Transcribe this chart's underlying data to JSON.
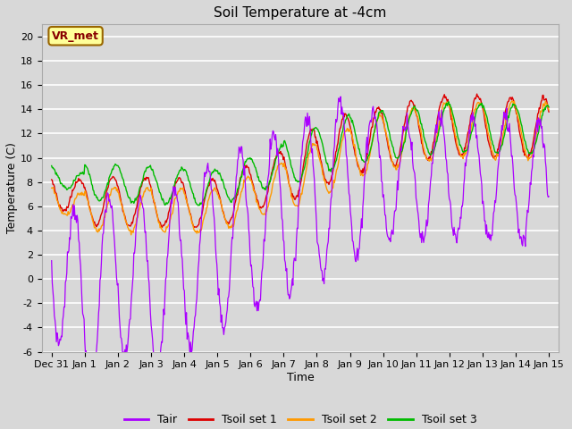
{
  "title": "Soil Temperature at -4cm",
  "xlabel": "Time",
  "ylabel": "Temperature (C)",
  "ylim": [
    -6,
    21
  ],
  "yticks": [
    -6,
    -4,
    -2,
    0,
    2,
    4,
    6,
    8,
    10,
    12,
    14,
    16,
    18,
    20
  ],
  "xtick_labels": [
    "Dec 31",
    "Jan 1",
    "Jan 2",
    "Jan 3",
    "Jan 4",
    "Jan 5",
    "Jan 6",
    "Jan 7",
    "Jan 8",
    "Jan 9",
    "Jan 10",
    "Jan 11",
    "Jan 12",
    "Jan 13",
    "Jan 14",
    "Jan 15"
  ],
  "legend_labels": [
    "Tair",
    "Tsoil set 1",
    "Tsoil set 2",
    "Tsoil set 3"
  ],
  "line_colors": [
    "#aa00ff",
    "#dd0000",
    "#ff9900",
    "#00bb00"
  ],
  "annotation_text": "VR_met",
  "annotation_bg": "#ffff99",
  "annotation_border": "#996600",
  "annotation_text_color": "#880000",
  "background_color": "#d8d8d8",
  "grid_color": "#ffffff",
  "title_fontsize": 11,
  "label_fontsize": 9,
  "tick_fontsize": 8
}
